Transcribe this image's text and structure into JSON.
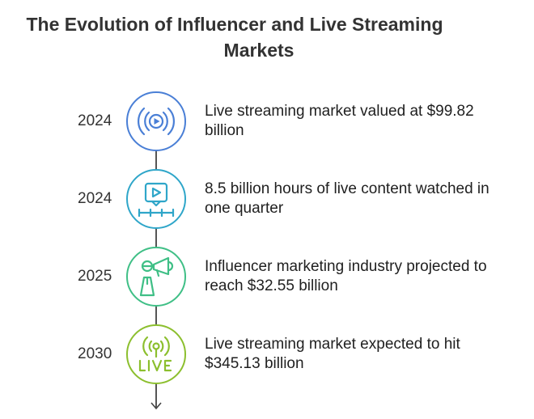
{
  "title": {
    "line1": "The Evolution of Influencer and Live Streaming",
    "line2": "Markets"
  },
  "events": [
    {
      "year": "2024",
      "line1": "Live streaming market valued at $99.82",
      "line2": "billion",
      "icon": "broadcast-play-icon",
      "color": "#4a7fd6"
    },
    {
      "year": "2024",
      "line1": "8.5 billion hours of live content watched in",
      "line2": "one quarter",
      "icon": "video-timeline-icon",
      "color": "#2fa6c9"
    },
    {
      "year": "2025",
      "line1": "Influencer marketing industry projected to",
      "line2": "reach $32.55 billion",
      "icon": "influencer-megaphone-icon",
      "color": "#3fbf86"
    },
    {
      "year": "2030",
      "line1": "Live streaming market expected to hit",
      "line2": "$345.13 billion",
      "icon": "live-antenna-icon",
      "color": "#8cbf2e"
    }
  ]
}
